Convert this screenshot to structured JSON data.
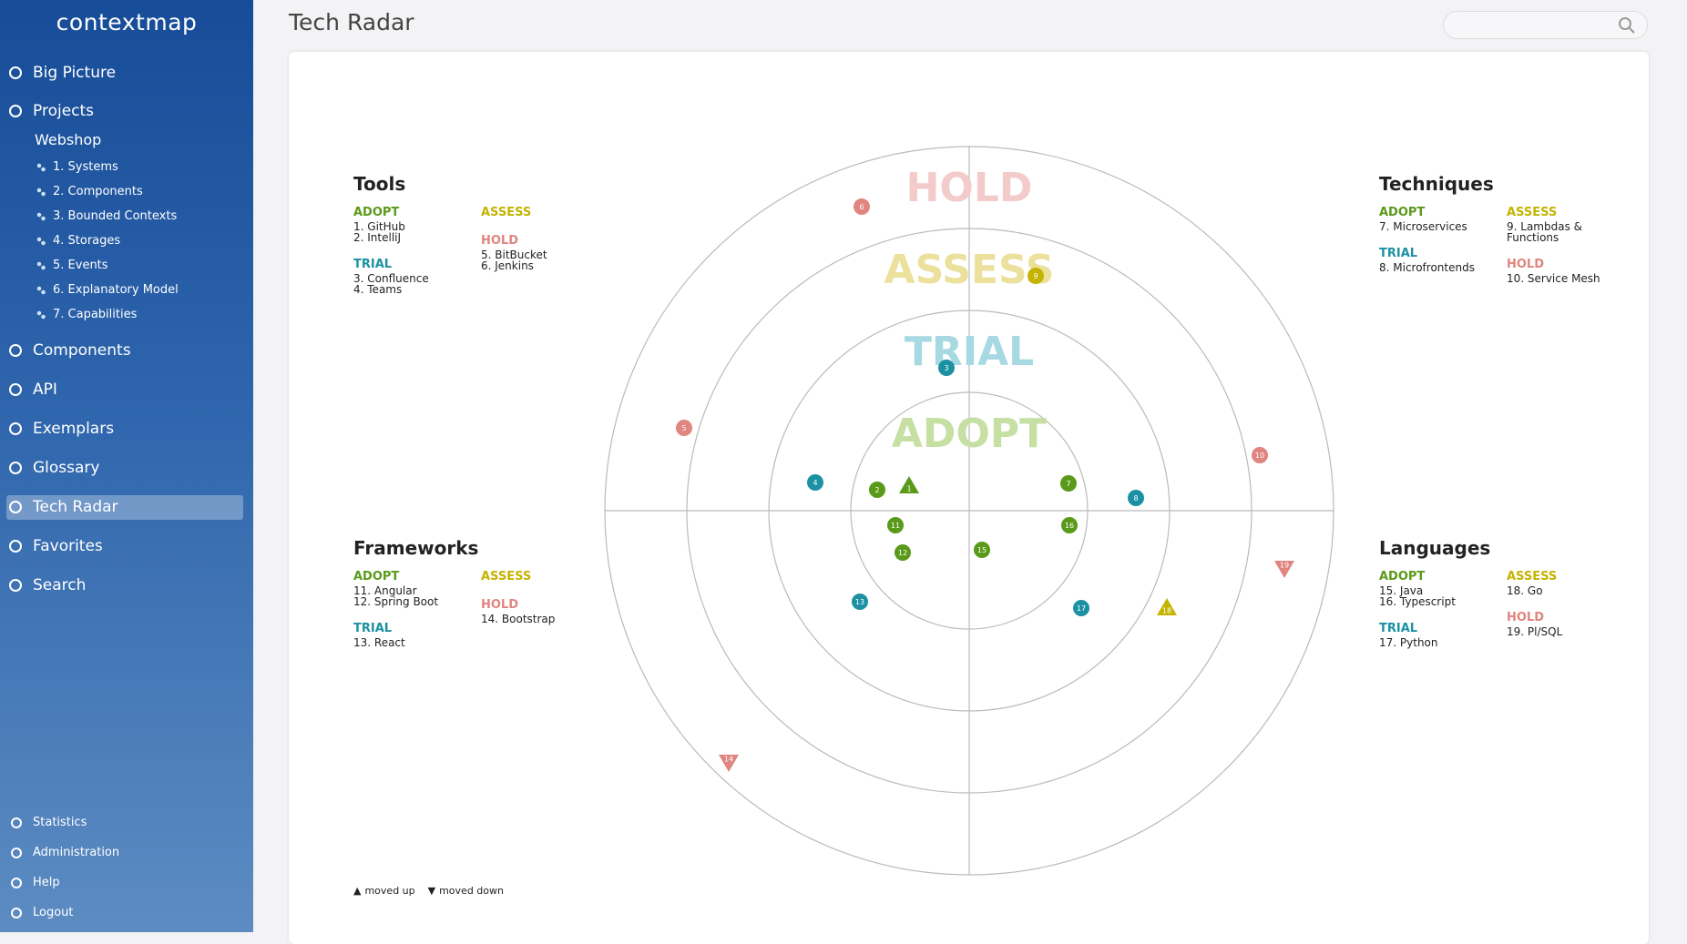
{
  "sidebar": {
    "logo": "contextmap",
    "nav_top": [
      "Big Picture",
      "Projects"
    ],
    "project": {
      "name": "Webshop",
      "items": [
        "1. Systems",
        "2. Components",
        "3. Bounded Contexts",
        "4. Storages",
        "5. Events",
        "6. Explanatory Model",
        "7. Capabilities"
      ]
    },
    "nav": [
      "Components",
      "API",
      "Exemplars",
      "Glossary",
      "Tech Radar",
      "Favorites",
      "Search"
    ],
    "bottom": [
      "Statistics",
      "Administration",
      "Help",
      "Logout"
    ]
  },
  "header": {
    "title": "Tech Radar"
  },
  "radar": {
    "rings": [
      {
        "label": "ADOPT",
        "color": "#5a9a1a",
        "pale": "#c6dfa3"
      },
      {
        "label": "TRIAL",
        "color": "#1b91a3",
        "pale": "#a7d9e2"
      },
      {
        "label": "ASSESS",
        "color": "#c4b300",
        "pale": "#ebe19c"
      },
      {
        "label": "HOLD",
        "color": "#e0857f",
        "pale": "#f3cbcb"
      }
    ],
    "quadrants": [
      {
        "title": "Tools",
        "adopt": [
          "1. GitHub",
          "2. IntelliJ"
        ],
        "trial": [
          "3. Confluence",
          "4. Teams"
        ],
        "assess": [],
        "hold": [
          "5. BitBucket",
          "6. Jenkins"
        ]
      },
      {
        "title": "Techniques",
        "adopt": [
          "7. Microservices"
        ],
        "trial": [
          "8. Microfrontends"
        ],
        "assess": [
          "9. Lambdas & Functions"
        ],
        "hold": [
          "10. Service Mesh"
        ]
      },
      {
        "title": "Frameworks",
        "adopt": [
          "11. Angular",
          "12. Spring Boot"
        ],
        "trial": [
          "13. React"
        ],
        "assess": [],
        "hold": [
          "14. Bootstrap"
        ]
      },
      {
        "title": "Languages",
        "adopt": [
          "15. Java",
          "16. Typescript"
        ],
        "trial": [
          "17. Python"
        ],
        "assess": [
          "18. Go"
        ],
        "hold": [
          "19. Pl/SQL"
        ]
      }
    ],
    "blips": [
      {
        "label": "1",
        "color": "#5a9a1a",
        "shape": "up"
      },
      {
        "label": "2",
        "color": "#5a9a1a",
        "shape": "circle"
      },
      {
        "label": "3",
        "color": "#1b91a3",
        "shape": "circle"
      },
      {
        "label": "4",
        "color": "#1b91a3",
        "shape": "circle"
      },
      {
        "label": "5",
        "color": "#e0857f",
        "shape": "circle"
      },
      {
        "label": "6",
        "color": "#e0857f",
        "shape": "circle"
      },
      {
        "label": "7",
        "color": "#5a9a1a",
        "shape": "circle"
      },
      {
        "label": "8",
        "color": "#1b91a3",
        "shape": "circle"
      },
      {
        "label": "9",
        "color": "#c4b300",
        "shape": "circle"
      },
      {
        "label": "10",
        "color": "#e0857f",
        "shape": "circle"
      },
      {
        "label": "11",
        "color": "#5a9a1a",
        "shape": "circle"
      },
      {
        "label": "12",
        "color": "#5a9a1a",
        "shape": "circle"
      },
      {
        "label": "13",
        "color": "#1b91a3",
        "shape": "circle"
      },
      {
        "label": "14",
        "color": "#e0857f",
        "shape": "down"
      },
      {
        "label": "15",
        "color": "#5a9a1a",
        "shape": "circle"
      },
      {
        "label": "16",
        "color": "#5a9a1a",
        "shape": "circle"
      },
      {
        "label": "17",
        "color": "#1b91a3",
        "shape": "circle"
      },
      {
        "label": "18",
        "color": "#c4b300",
        "shape": "up"
      },
      {
        "label": "19",
        "color": "#e0857f",
        "shape": "down"
      }
    ],
    "legend": {
      "up": "moved up",
      "down": "moved down"
    }
  }
}
